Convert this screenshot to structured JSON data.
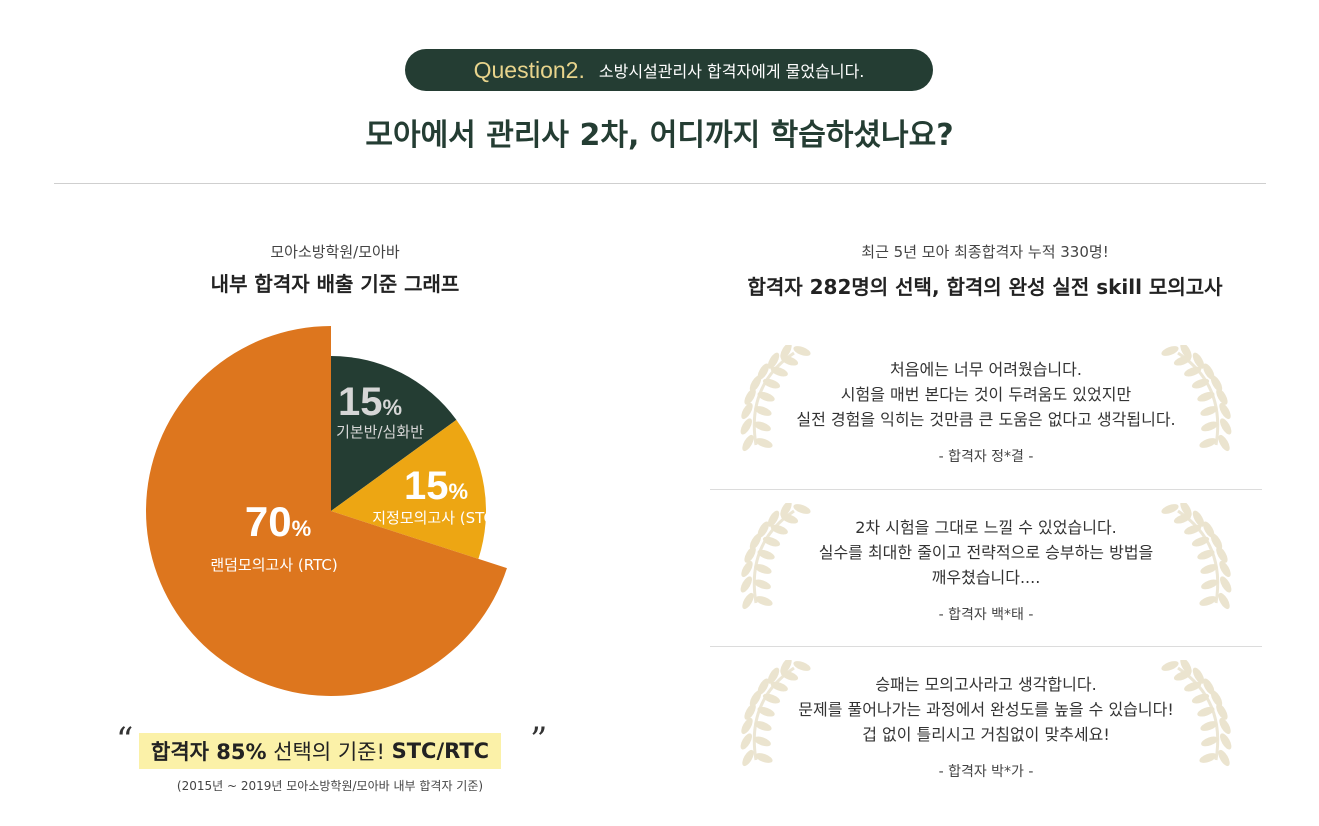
{
  "header": {
    "question_label": "Question2.",
    "question_text": "소방시설관리사 합격자에게 물었습니다.",
    "headline": "모아에서 관리사 2차, 어디까지 학습하셨나요?"
  },
  "left": {
    "subtitle": "모아소방학원/모아바",
    "title": "내부 합격자 배출 기준 그래프",
    "highlight_bold": "합격자 85%",
    "highlight_normal": " 선택의 기준! ",
    "highlight_bold2": "STC/RTC",
    "footnote": "(2015년 ~ 2019년 모아소방학원/모아바 내부 합격자 기준)"
  },
  "chart_data": {
    "type": "pie",
    "slices": [
      {
        "label": "기본반/심화반",
        "value": 15,
        "display": "15",
        "color": "#243d33"
      },
      {
        "label": "지정모의고사 (STC)",
        "value": 15,
        "display": "15",
        "color": "#eda613"
      },
      {
        "label": "랜덤모의고사 (RTC)",
        "value": 70,
        "display": "70",
        "color": "#dd761e"
      }
    ],
    "unit": "%"
  },
  "right": {
    "subtitle": "최근 5년 모아 최종합격자 누적 330명!",
    "title": "합격자 282명의 선택, 합격의 완성 실전 skill 모의고사",
    "testimonials": [
      {
        "lines": [
          "처음에는 너무 어려웠습니다.",
          "시험을 매번 본다는 것이 두려움도 있었지만",
          "실전 경험을 익히는 것만큼 큰 도움은 없다고 생각됩니다."
        ],
        "author": "- 합격자 정*결 -"
      },
      {
        "lines": [
          "2차 시험을 그대로 느낄 수 있었습니다.",
          "실수를 최대한 줄이고 전략적으로 승부하는 방법을",
          "깨우쳤습니다...."
        ],
        "author": "- 합격자 백*태 -"
      },
      {
        "lines": [
          "승패는 모의고사라고 생각합니다.",
          "문제를 풀어나가는 과정에서 완성도를 높을 수 있습니다!",
          "겁 없이 틀리시고 거침없이 맞추세요!"
        ],
        "author": "- 합격자 박*가 -"
      }
    ]
  }
}
